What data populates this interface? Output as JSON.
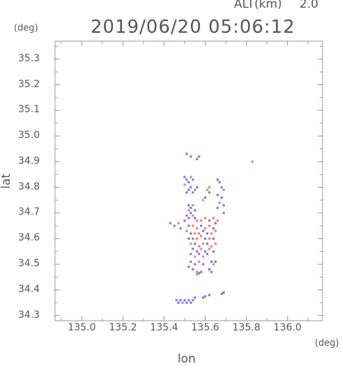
{
  "header": {
    "altitude_label": "ALT(km)",
    "altitude_value": "2.0",
    "timestamp": "2019/06/20 05:06:12"
  },
  "chart_data": {
    "type": "scatter",
    "xlabel": "lon",
    "ylabel": "lat",
    "x_unit": "(deg)",
    "y_unit": "(deg)",
    "xlim": [
      134.87,
      136.17
    ],
    "ylim": [
      34.28,
      35.37
    ],
    "x_ticks": [
      135.0,
      135.2,
      135.4,
      135.6,
      135.8,
      136.0
    ],
    "x_tick_labels": [
      "135.0",
      "135.2",
      "135.4",
      "135.6",
      "135.8",
      "136.0"
    ],
    "y_ticks": [
      34.3,
      34.4,
      34.5,
      34.6,
      34.7,
      34.8,
      34.9,
      35.0,
      35.1,
      35.2,
      35.3
    ],
    "y_tick_labels": [
      "34.3",
      "34.4",
      "34.5",
      "34.6",
      "34.7",
      "34.8",
      "34.9",
      "35.0",
      "35.1",
      "35.2",
      "35.3"
    ],
    "grid": false,
    "colors": {
      "positive": "#e8584a",
      "negative": "#4b4fd8",
      "frame": "#999999"
    },
    "series": [
      {
        "values": [
          {
            "x": 135.51,
            "y": 34.93,
            "v": -1
          },
          {
            "x": 135.53,
            "y": 34.92,
            "v": -1
          },
          {
            "x": 135.56,
            "y": 34.91,
            "v": -1
          },
          {
            "x": 135.57,
            "y": 34.92,
            "v": -1
          },
          {
            "x": 135.83,
            "y": 34.9,
            "v": 1
          },
          {
            "x": 135.5,
            "y": 34.84,
            "v": -1
          },
          {
            "x": 135.51,
            "y": 34.83,
            "v": -1
          },
          {
            "x": 135.53,
            "y": 34.84,
            "v": 1
          },
          {
            "x": 135.54,
            "y": 34.83,
            "v": -1
          },
          {
            "x": 135.52,
            "y": 34.82,
            "v": -1
          },
          {
            "x": 135.5,
            "y": 34.81,
            "v": 1
          },
          {
            "x": 135.52,
            "y": 34.79,
            "v": -1
          },
          {
            "x": 135.53,
            "y": 34.8,
            "v": -1
          },
          {
            "x": 135.55,
            "y": 34.79,
            "v": 1
          },
          {
            "x": 135.56,
            "y": 34.8,
            "v": -1
          },
          {
            "x": 135.51,
            "y": 34.78,
            "v": -1
          },
          {
            "x": 135.54,
            "y": 34.78,
            "v": -1
          },
          {
            "x": 135.62,
            "y": 34.8,
            "v": 1
          },
          {
            "x": 135.61,
            "y": 34.79,
            "v": 1
          },
          {
            "x": 135.62,
            "y": 34.78,
            "v": -1
          },
          {
            "x": 135.6,
            "y": 34.76,
            "v": -1
          },
          {
            "x": 135.59,
            "y": 34.75,
            "v": 1
          },
          {
            "x": 135.66,
            "y": 34.83,
            "v": -1
          },
          {
            "x": 135.67,
            "y": 34.82,
            "v": -1
          },
          {
            "x": 135.68,
            "y": 34.8,
            "v": -1
          },
          {
            "x": 135.69,
            "y": 34.79,
            "v": 1
          },
          {
            "x": 135.66,
            "y": 34.77,
            "v": -1
          },
          {
            "x": 135.68,
            "y": 34.76,
            "v": -1
          },
          {
            "x": 135.67,
            "y": 34.74,
            "v": 1
          },
          {
            "x": 135.69,
            "y": 34.73,
            "v": -1
          },
          {
            "x": 135.66,
            "y": 34.72,
            "v": -1
          },
          {
            "x": 135.69,
            "y": 34.7,
            "v": -1
          },
          {
            "x": 135.52,
            "y": 34.73,
            "v": -1
          },
          {
            "x": 135.53,
            "y": 34.72,
            "v": -1
          },
          {
            "x": 135.54,
            "y": 34.73,
            "v": 1
          },
          {
            "x": 135.52,
            "y": 34.71,
            "v": 1
          },
          {
            "x": 135.53,
            "y": 34.7,
            "v": -1
          },
          {
            "x": 135.55,
            "y": 34.71,
            "v": -1
          },
          {
            "x": 135.51,
            "y": 34.69,
            "v": -1
          },
          {
            "x": 135.54,
            "y": 34.69,
            "v": 1
          },
          {
            "x": 135.52,
            "y": 34.68,
            "v": -1
          },
          {
            "x": 135.55,
            "y": 34.68,
            "v": -1
          },
          {
            "x": 135.5,
            "y": 34.67,
            "v": -1
          },
          {
            "x": 135.56,
            "y": 34.67,
            "v": 1
          },
          {
            "x": 135.58,
            "y": 34.67,
            "v": 1
          },
          {
            "x": 135.6,
            "y": 34.68,
            "v": 1
          },
          {
            "x": 135.62,
            "y": 34.67,
            "v": -1
          },
          {
            "x": 135.64,
            "y": 34.68,
            "v": 1
          },
          {
            "x": 135.66,
            "y": 34.67,
            "v": 1
          },
          {
            "x": 135.65,
            "y": 34.66,
            "v": -1
          },
          {
            "x": 135.43,
            "y": 34.66,
            "v": -1
          },
          {
            "x": 135.45,
            "y": 34.65,
            "v": -1
          },
          {
            "x": 135.47,
            "y": 34.66,
            "v": 1
          },
          {
            "x": 135.48,
            "y": 34.64,
            "v": -1
          },
          {
            "x": 135.52,
            "y": 34.65,
            "v": -1
          },
          {
            "x": 135.54,
            "y": 34.65,
            "v": 1
          },
          {
            "x": 135.56,
            "y": 34.64,
            "v": 1
          },
          {
            "x": 135.58,
            "y": 34.65,
            "v": -1
          },
          {
            "x": 135.6,
            "y": 34.64,
            "v": 1
          },
          {
            "x": 135.62,
            "y": 34.65,
            "v": 1
          },
          {
            "x": 135.64,
            "y": 34.64,
            "v": -1
          },
          {
            "x": 135.51,
            "y": 34.63,
            "v": 1
          },
          {
            "x": 135.53,
            "y": 34.62,
            "v": -1
          },
          {
            "x": 135.55,
            "y": 34.62,
            "v": 1
          },
          {
            "x": 135.57,
            "y": 34.62,
            "v": 1
          },
          {
            "x": 135.59,
            "y": 34.63,
            "v": -1
          },
          {
            "x": 135.61,
            "y": 34.62,
            "v": -1
          },
          {
            "x": 135.63,
            "y": 34.62,
            "v": 1
          },
          {
            "x": 135.65,
            "y": 34.63,
            "v": 1
          },
          {
            "x": 135.52,
            "y": 34.6,
            "v": -1
          },
          {
            "x": 135.54,
            "y": 34.6,
            "v": -1
          },
          {
            "x": 135.56,
            "y": 34.6,
            "v": 1
          },
          {
            "x": 135.58,
            "y": 34.61,
            "v": 1
          },
          {
            "x": 135.6,
            "y": 34.6,
            "v": -1
          },
          {
            "x": 135.62,
            "y": 34.6,
            "v": 1
          },
          {
            "x": 135.64,
            "y": 34.6,
            "v": -1
          },
          {
            "x": 135.53,
            "y": 34.58,
            "v": 1
          },
          {
            "x": 135.55,
            "y": 34.58,
            "v": -1
          },
          {
            "x": 135.57,
            "y": 34.57,
            "v": 1
          },
          {
            "x": 135.59,
            "y": 34.58,
            "v": 1
          },
          {
            "x": 135.61,
            "y": 34.58,
            "v": -1
          },
          {
            "x": 135.63,
            "y": 34.57,
            "v": 1
          },
          {
            "x": 135.65,
            "y": 34.58,
            "v": 1
          },
          {
            "x": 135.54,
            "y": 34.56,
            "v": -1
          },
          {
            "x": 135.56,
            "y": 34.55,
            "v": -1
          },
          {
            "x": 135.58,
            "y": 34.56,
            "v": 1
          },
          {
            "x": 135.6,
            "y": 34.55,
            "v": -1
          },
          {
            "x": 135.62,
            "y": 34.56,
            "v": 1
          },
          {
            "x": 135.64,
            "y": 34.55,
            "v": -1
          },
          {
            "x": 135.53,
            "y": 34.54,
            "v": -1
          },
          {
            "x": 135.55,
            "y": 34.53,
            "v": 1
          },
          {
            "x": 135.57,
            "y": 34.54,
            "v": -1
          },
          {
            "x": 135.59,
            "y": 34.53,
            "v": 1
          },
          {
            "x": 135.61,
            "y": 34.54,
            "v": -1
          },
          {
            "x": 135.53,
            "y": 34.51,
            "v": -1
          },
          {
            "x": 135.55,
            "y": 34.5,
            "v": -1
          },
          {
            "x": 135.57,
            "y": 34.51,
            "v": 1
          },
          {
            "x": 135.59,
            "y": 34.5,
            "v": -1
          },
          {
            "x": 135.52,
            "y": 34.49,
            "v": -1
          },
          {
            "x": 135.54,
            "y": 34.48,
            "v": -1
          },
          {
            "x": 135.56,
            "y": 34.47,
            "v": 1
          },
          {
            "x": 135.58,
            "y": 34.47,
            "v": -1
          },
          {
            "x": 135.56,
            "y": 34.46,
            "v": 1
          },
          {
            "x": 135.57,
            "y": 34.465,
            "v": -1
          },
          {
            "x": 135.63,
            "y": 34.51,
            "v": -1
          },
          {
            "x": 135.64,
            "y": 34.5,
            "v": 1
          },
          {
            "x": 135.65,
            "y": 34.51,
            "v": -1
          },
          {
            "x": 135.62,
            "y": 34.48,
            "v": -1
          },
          {
            "x": 135.63,
            "y": 34.47,
            "v": -1
          },
          {
            "x": 135.69,
            "y": 34.39,
            "v": -1
          },
          {
            "x": 135.68,
            "y": 34.385,
            "v": -1
          },
          {
            "x": 135.46,
            "y": 34.36,
            "v": -1
          },
          {
            "x": 135.47,
            "y": 34.35,
            "v": -1
          },
          {
            "x": 135.48,
            "y": 34.36,
            "v": -1
          },
          {
            "x": 135.49,
            "y": 34.35,
            "v": 1
          },
          {
            "x": 135.5,
            "y": 34.36,
            "v": -1
          },
          {
            "x": 135.51,
            "y": 34.35,
            "v": -1
          },
          {
            "x": 135.52,
            "y": 34.36,
            "v": -1
          },
          {
            "x": 135.53,
            "y": 34.35,
            "v": -1
          },
          {
            "x": 135.54,
            "y": 34.36,
            "v": -1
          },
          {
            "x": 135.55,
            "y": 34.37,
            "v": -1
          },
          {
            "x": 135.59,
            "y": 34.37,
            "v": -1
          },
          {
            "x": 135.6,
            "y": 34.375,
            "v": -1
          },
          {
            "x": 135.62,
            "y": 34.38,
            "v": -1
          }
        ]
      }
    ]
  }
}
